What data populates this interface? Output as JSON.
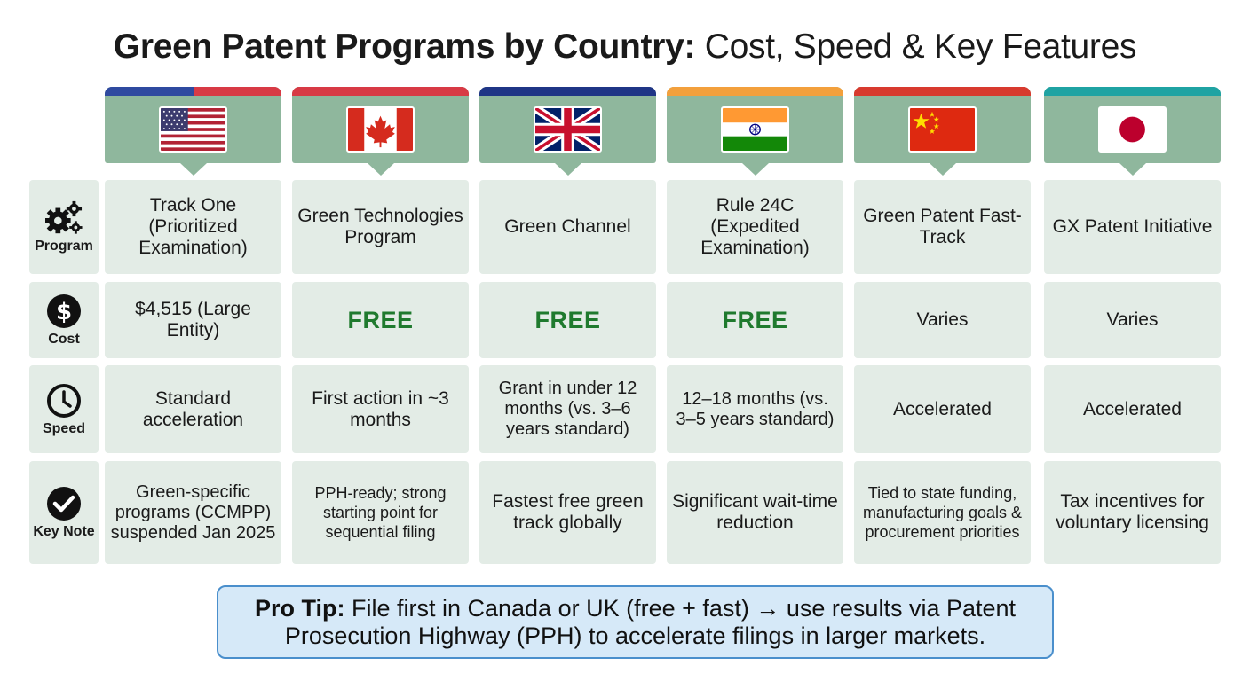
{
  "title": {
    "bold": "Green Patent Programs by Country:",
    "regular": " Cost, Speed & Key Features"
  },
  "rows": {
    "program": "Program",
    "cost": "Cost",
    "speed": "Speed",
    "note": "Key Note"
  },
  "countries": [
    {
      "flag": "usa-flag",
      "stripe_colors": [
        "#2f4aa0",
        "#d83a45"
      ],
      "program": "Track One (Prioritized Examination)",
      "cost": "$4,515 (Large Entity)",
      "cost_free": false,
      "speed": "Standard acceleration",
      "note": "Green-specific programs (CCMPP) suspended Jan 2025"
    },
    {
      "flag": "canada-flag",
      "stripe_colors": [
        "#d83a45"
      ],
      "program": "Green Technologies Program",
      "cost": "FREE",
      "cost_free": true,
      "speed": "First action in ~3 months",
      "note": "PPH-ready; strong starting point for sequential filing"
    },
    {
      "flag": "uk-flag",
      "stripe_colors": [
        "#1f3586"
      ],
      "program": "Green Channel",
      "cost": "FREE",
      "cost_free": true,
      "speed": "Grant in under 12 months (vs. 3–6 years standard)",
      "note": "Fastest free green track globally"
    },
    {
      "flag": "india-flag",
      "stripe_colors": [
        "#f3a03c"
      ],
      "program": "Rule 24C (Expedited Examination)",
      "cost": "FREE",
      "cost_free": true,
      "speed": "12–18 months (vs. 3–5 years standard)",
      "note": "Significant wait-time reduction"
    },
    {
      "flag": "china-flag",
      "stripe_colors": [
        "#d83a2e"
      ],
      "program": "Green Patent Fast-Track",
      "cost": "Varies",
      "cost_free": false,
      "speed": "Accelerated",
      "note": "Tied to state funding, manufacturing goals & procurement priorities"
    },
    {
      "flag": "japan-flag",
      "stripe_colors": [
        "#1fa3a3"
      ],
      "program": "GX Patent Initiative",
      "cost": "Varies",
      "cost_free": false,
      "speed": "Accelerated",
      "note": "Tax incentives for voluntary licensing"
    }
  ],
  "tip": {
    "label": "Pro Tip:",
    "text": " File first in Canada or UK (free + fast) → use results via Patent Prosecution Highway (PPH) to accelerate filings in larger markets."
  },
  "colors": {
    "header": "#8fb79d",
    "cell": "#e3ece6",
    "free": "#1f7a2e",
    "tip_bg": "#d6e9f8",
    "tip_border": "#4a8fcc"
  }
}
